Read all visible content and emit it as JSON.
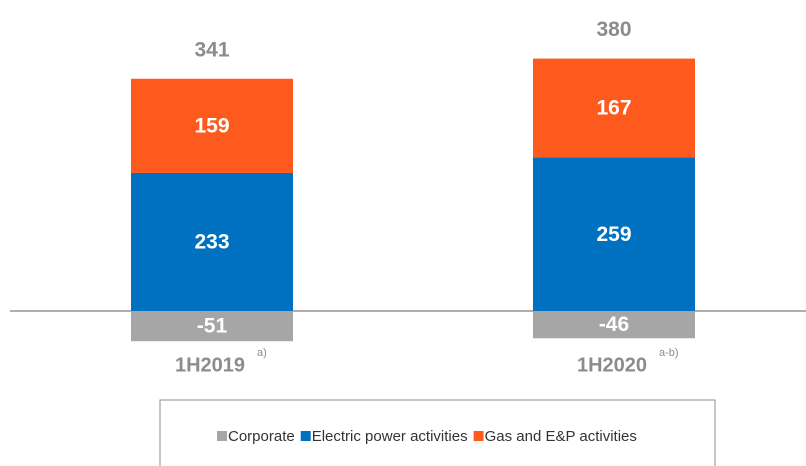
{
  "chart_data": {
    "type": "stacked_bar",
    "categories": [
      "1H2019",
      "1H2020"
    ],
    "footnotes": [
      "a)",
      "a-b)"
    ],
    "totals": [
      341,
      380
    ],
    "series": [
      {
        "name": "Corporate",
        "color": "#a6a6a6",
        "values": [
          -51,
          -46
        ]
      },
      {
        "name": "Electric power activities",
        "color": "#0070c0",
        "values": [
          233,
          259
        ]
      },
      {
        "name": "Gas and E&P activities",
        "color": "#fe5a1d",
        "values": [
          159,
          167
        ]
      }
    ]
  }
}
